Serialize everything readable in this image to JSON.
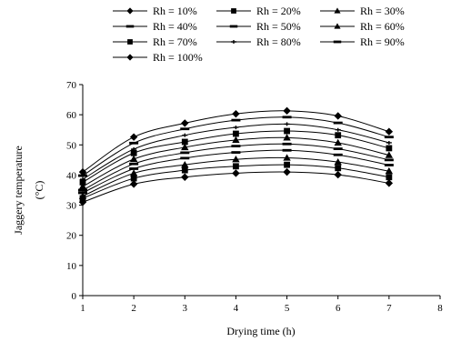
{
  "chart_data": {
    "type": "line",
    "title": "",
    "xlabel": "Drying time (h)",
    "ylabel_lines": [
      "Jaggery temperature",
      "(°C)"
    ],
    "xlim": [
      1,
      8
    ],
    "ylim": [
      0,
      70
    ],
    "xticks": [
      1,
      2,
      3,
      4,
      5,
      6,
      7,
      8
    ],
    "yticks": [
      0,
      10,
      20,
      30,
      40,
      50,
      60,
      70
    ],
    "grid": false,
    "legend_position": "top",
    "x": [
      1,
      2,
      3,
      4,
      5,
      6,
      7
    ],
    "series": [
      {
        "name": "Rh = 10%",
        "marker": "diamond",
        "values": [
          31.0,
          37.0,
          39.3,
          40.6,
          41.0,
          40.1,
          37.3
        ]
      },
      {
        "name": "Rh = 20%",
        "marker": "square",
        "values": [
          32.3,
          38.9,
          41.6,
          42.9,
          43.4,
          42.3,
          39.3
        ]
      },
      {
        "name": "Rh = 30%",
        "marker": "triangle",
        "values": [
          33.0,
          40.6,
          43.4,
          45.2,
          45.7,
          44.3,
          41.3
        ]
      },
      {
        "name": "Rh = 40%",
        "marker": "dash",
        "values": [
          34.1,
          42.1,
          45.6,
          47.5,
          48.2,
          46.7,
          43.3
        ]
      },
      {
        "name": "Rh = 50%",
        "marker": "dash",
        "values": [
          35.0,
          43.7,
          47.4,
          49.6,
          50.3,
          48.7,
          45.0
        ]
      },
      {
        "name": "Rh = 60%",
        "marker": "triangle",
        "values": [
          36.2,
          45.3,
          49.2,
          51.6,
          52.4,
          50.7,
          46.6
        ]
      },
      {
        "name": "Rh = 70%",
        "marker": "square",
        "values": [
          37.6,
          47.3,
          51.0,
          53.7,
          54.6,
          53.2,
          48.9
        ]
      },
      {
        "name": "Rh = 80%",
        "marker": "plus",
        "values": [
          38.6,
          48.6,
          53.2,
          55.8,
          56.9,
          55.0,
          50.7
        ]
      },
      {
        "name": "Rh = 90%",
        "marker": "dash",
        "values": [
          39.8,
          50.6,
          55.3,
          58.2,
          59.2,
          57.3,
          52.6
        ]
      },
      {
        "name": "Rh = 100%",
        "marker": "diamond",
        "values": [
          41.0,
          52.6,
          57.2,
          60.3,
          61.3,
          59.6,
          54.4
        ]
      }
    ]
  }
}
